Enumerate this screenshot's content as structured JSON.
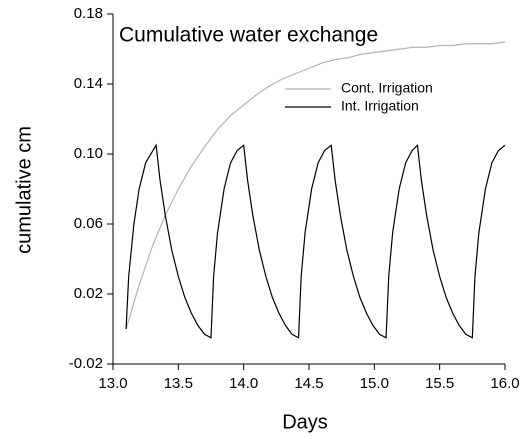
{
  "chart_data": {
    "type": "line",
    "title": "Cumulative water exchange",
    "x_label": "Days",
    "y_label": "cumulative cm",
    "xlim": [
      13,
      16
    ],
    "xticks": [
      {
        "value": 13,
        "label": "13.0"
      },
      13.5,
      {
        "value": 14,
        "label": "14.0"
      },
      14.5,
      {
        "value": 15,
        "label": "15.0"
      },
      15.5,
      {
        "value": 16,
        "label": "16.0"
      }
    ],
    "ylim": [
      -0.02,
      0.18
    ],
    "yticks": [
      -0.02,
      0.02,
      0.06,
      {
        "value": 0.1,
        "label": "0.10"
      },
      0.14,
      0.18
    ],
    "legend": "upper right",
    "series": [
      {
        "name": "Cont. Irrigation",
        "color": "#b4b4b4",
        "x": [
          13.1,
          13.2,
          13.3,
          13.4,
          13.5,
          13.6,
          13.7,
          13.8,
          13.9,
          14.0,
          14.1,
          14.2,
          14.3,
          14.4,
          14.5,
          14.6,
          14.7,
          14.8,
          14.9,
          15.0,
          15.1,
          15.2,
          15.3,
          15.4,
          15.5,
          15.6,
          15.7,
          15.8,
          15.9,
          16.0
        ],
        "values": [
          0,
          0.025,
          0.047,
          0.065,
          0.08,
          0.093,
          0.104,
          0.114,
          0.122,
          0.128,
          0.134,
          0.139,
          0.143,
          0.146,
          0.149,
          0.152,
          0.154,
          0.155,
          0.157,
          0.158,
          0.159,
          0.16,
          0.161,
          0.161,
          0.162,
          0.162,
          0.163,
          0.163,
          0.163,
          0.164
        ]
      },
      {
        "name": "Int. Irrigation",
        "color": "#000000",
        "x": [
          13.1,
          13.12,
          13.16,
          13.2,
          13.25,
          13.33,
          13.36,
          13.4,
          13.45,
          13.5,
          13.55,
          13.6,
          13.65,
          13.7,
          13.75,
          13.77,
          13.8,
          13.85,
          13.9,
          13.95,
          14.0,
          14.03,
          14.07,
          14.12,
          14.17,
          14.22,
          14.27,
          14.32,
          14.37,
          14.42,
          14.44,
          14.47,
          14.52,
          14.57,
          14.62,
          14.67,
          14.7,
          14.74,
          14.79,
          14.84,
          14.89,
          14.94,
          14.99,
          15.04,
          15.09,
          15.11,
          15.14,
          15.19,
          15.24,
          15.29,
          15.33,
          15.36,
          15.4,
          15.45,
          15.5,
          15.55,
          15.6,
          15.65,
          15.7,
          15.75,
          15.77,
          15.8,
          15.85,
          15.9,
          15.95,
          16.0
        ],
        "values": [
          0,
          0.03,
          0.06,
          0.08,
          0.095,
          0.105,
          0.085,
          0.065,
          0.045,
          0.03,
          0.018,
          0.009,
          0.002,
          -0.003,
          -0.005,
          0.03,
          0.055,
          0.08,
          0.095,
          0.102,
          0.105,
          0.085,
          0.065,
          0.045,
          0.03,
          0.018,
          0.009,
          0.002,
          -0.003,
          -0.005,
          0.03,
          0.055,
          0.08,
          0.095,
          0.102,
          0.105,
          0.085,
          0.065,
          0.045,
          0.03,
          0.018,
          0.009,
          0.002,
          -0.003,
          -0.005,
          0.03,
          0.055,
          0.08,
          0.095,
          0.102,
          0.105,
          0.085,
          0.065,
          0.045,
          0.03,
          0.018,
          0.009,
          0.002,
          -0.003,
          -0.005,
          0.03,
          0.055,
          0.08,
          0.095,
          0.102,
          0.105
        ]
      }
    ]
  }
}
